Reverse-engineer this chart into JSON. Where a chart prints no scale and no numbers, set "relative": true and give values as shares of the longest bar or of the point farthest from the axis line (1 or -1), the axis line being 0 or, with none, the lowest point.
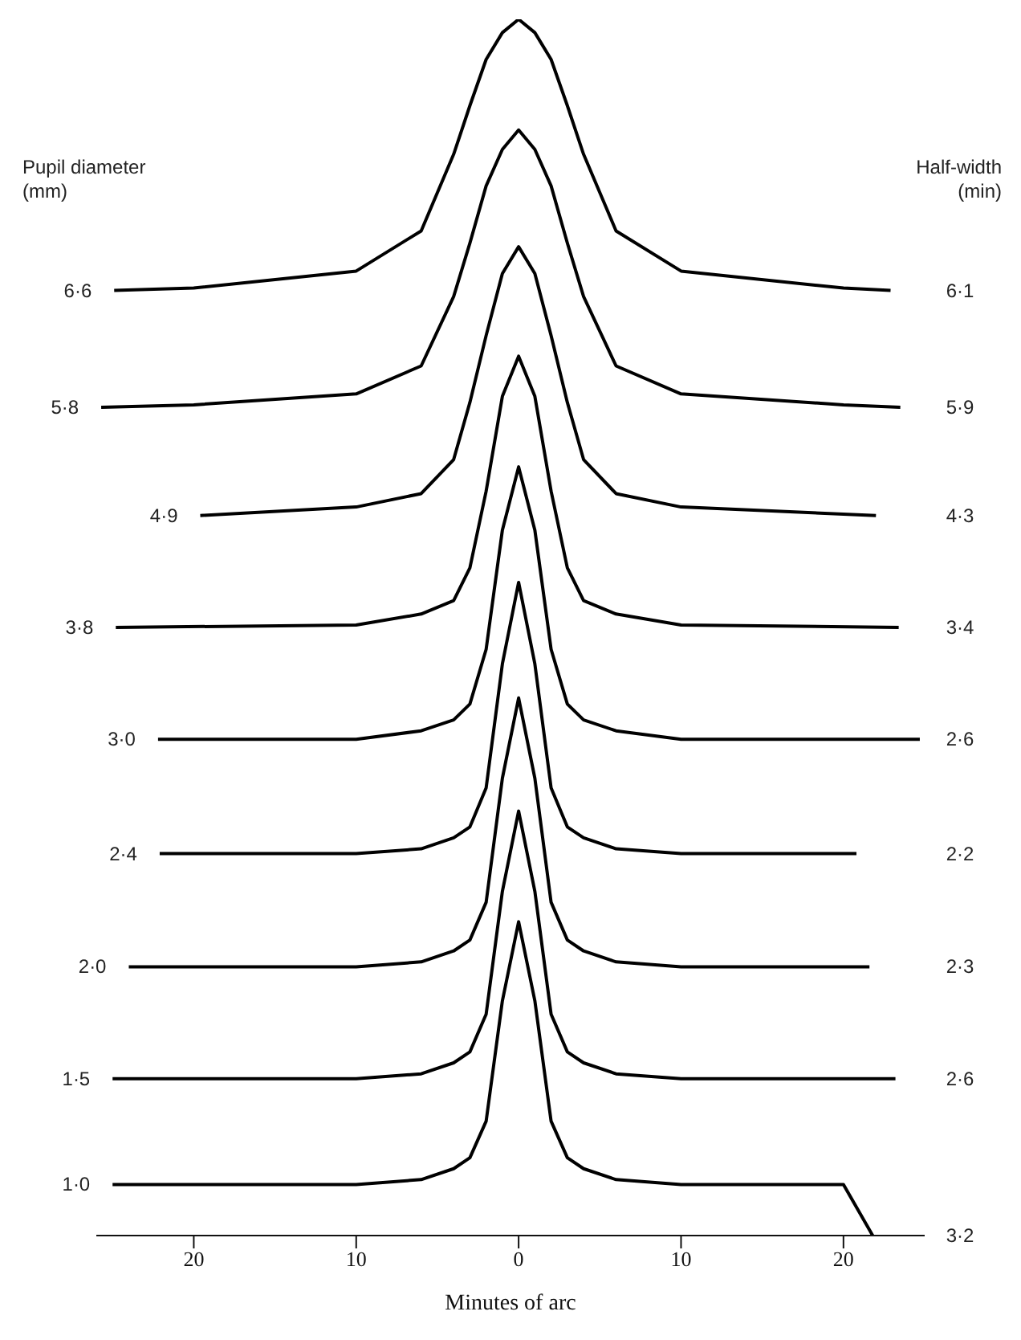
{
  "chart_data": {
    "type": "line",
    "relative": true,
    "xlabel": "Minutes of arc",
    "ylabel": "Pupil diameter\n(mm)",
    "y2label": "Half-width\n(min)",
    "xlim": [
      -26,
      25
    ],
    "xticks": [
      {
        "value": -20,
        "label": "20"
      },
      {
        "value": -10,
        "label": "10"
      },
      0,
      10,
      20
    ],
    "series": [
      {
        "name": "6·6",
        "color": "#000000",
        "x": [
          -24.9,
          -20,
          -10,
          -6,
          -4,
          -3,
          -2,
          -1,
          0,
          1,
          2,
          3,
          4,
          6,
          10,
          20,
          22.9
        ],
        "values": [
          0.777,
          0.779,
          0.793,
          0.826,
          0.889,
          0.929,
          0.967,
          0.989,
          1,
          0.989,
          0.967,
          0.929,
          0.889,
          0.826,
          0.793,
          0.779,
          0.777
        ]
      },
      {
        "name": "5·8",
        "color": "#000000",
        "x": [
          -25.7,
          -20,
          -10,
          -6,
          -4,
          -3,
          -2,
          -1,
          0,
          1,
          2,
          3,
          4,
          6,
          10,
          20,
          23.5
        ],
        "values": [
          0.681,
          0.683,
          0.692,
          0.715,
          0.772,
          0.816,
          0.863,
          0.893,
          0.909,
          0.893,
          0.863,
          0.816,
          0.772,
          0.715,
          0.692,
          0.683,
          0.681
        ]
      },
      {
        "name": "4·9",
        "color": "#000000",
        "x": [
          -19.6,
          -10,
          -6,
          -4,
          -3,
          -2,
          -1,
          0,
          1,
          2,
          3,
          4,
          6,
          10,
          22
        ],
        "values": [
          0.592,
          0.599,
          0.61,
          0.638,
          0.685,
          0.74,
          0.791,
          0.813,
          0.791,
          0.74,
          0.685,
          0.638,
          0.61,
          0.599,
          0.592
        ]
      },
      {
        "name": "3·8",
        "color": "#000000",
        "x": [
          -24.8,
          -10,
          -6,
          -4,
          -3,
          -2,
          -1,
          0,
          1,
          2,
          3,
          4,
          6,
          10,
          23.4
        ],
        "values": [
          0.5,
          0.502,
          0.511,
          0.522,
          0.549,
          0.612,
          0.69,
          0.723,
          0.69,
          0.612,
          0.549,
          0.522,
          0.511,
          0.502,
          0.5
        ]
      },
      {
        "name": "3·0",
        "color": "#000000",
        "x": [
          -22.2,
          -10,
          -6,
          -4,
          -3,
          -2,
          -1,
          0,
          1,
          2,
          3,
          4,
          6,
          10,
          24.7
        ],
        "values": [
          0.408,
          0.408,
          0.415,
          0.424,
          0.437,
          0.482,
          0.58,
          0.632,
          0.58,
          0.482,
          0.437,
          0.424,
          0.415,
          0.408,
          0.408
        ]
      },
      {
        "name": "2·4",
        "color": "#000000",
        "x": [
          -22.1,
          -10,
          -6,
          -4,
          -3,
          -2,
          -1,
          0,
          1,
          2,
          3,
          4,
          6,
          10,
          20.8
        ],
        "values": [
          0.314,
          0.314,
          0.318,
          0.327,
          0.336,
          0.368,
          0.47,
          0.537,
          0.47,
          0.368,
          0.336,
          0.327,
          0.318,
          0.314,
          0.314
        ]
      },
      {
        "name": "2·0",
        "color": "#000000",
        "x": [
          -24,
          -10,
          -6,
          -4,
          -3,
          -2,
          -1,
          0,
          1,
          2,
          3,
          4,
          6,
          10,
          21.6
        ],
        "values": [
          0.221,
          0.221,
          0.225,
          0.234,
          0.243,
          0.274,
          0.376,
          0.442,
          0.376,
          0.274,
          0.243,
          0.234,
          0.225,
          0.221,
          0.221
        ]
      },
      {
        "name": "1·5",
        "color": "#000000",
        "x": [
          -25,
          -10,
          -6,
          -4,
          -3,
          -2,
          -1,
          0,
          1,
          2,
          3,
          4,
          6,
          10,
          23.2
        ],
        "values": [
          0.129,
          0.129,
          0.133,
          0.142,
          0.151,
          0.182,
          0.283,
          0.349,
          0.283,
          0.182,
          0.151,
          0.142,
          0.133,
          0.129,
          0.129
        ]
      },
      {
        "name": "1·0",
        "color": "#000000",
        "x": [
          -25,
          -10,
          -6,
          -4,
          -3,
          -2,
          -1,
          0,
          1,
          2,
          3,
          4,
          6,
          10,
          20,
          21.8
        ],
        "values": [
          0.042,
          0.042,
          0.046,
          0.055,
          0.064,
          0.094,
          0.193,
          0.258,
          0.193,
          0.094,
          0.064,
          0.055,
          0.046,
          0.042,
          0.042,
          0
        ]
      }
    ],
    "annotations": [
      "6·1",
      "5·9",
      "4·3",
      "3·4",
      "2·6",
      "2·2",
      "2·3",
      "2·6",
      "3·2"
    ]
  }
}
